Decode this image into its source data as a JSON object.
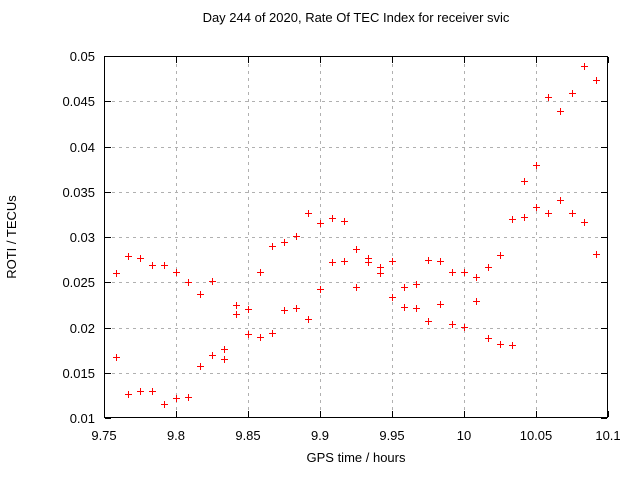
{
  "title": "Day 244 of 2020, Rate Of TEC Index for receiver svic",
  "axes": {
    "xlabel": "GPS time / hours",
    "ylabel": "ROTI / TECUs",
    "x_ticks": [
      "9.75",
      "9.8",
      "9.85",
      "9.9",
      "9.95",
      "10",
      "10.05",
      "10.1"
    ],
    "y_ticks": [
      "0.01",
      "0.015",
      "0.02",
      "0.025",
      "0.03",
      "0.035",
      "0.04",
      "0.045",
      "0.05"
    ]
  },
  "colors": {
    "marker": "#ff0000",
    "grid": "#b0b0b0",
    "axis": "#000000",
    "background": "#ffffff"
  },
  "chart_data": {
    "type": "scatter",
    "title": "Day 244 of 2020, Rate Of TEC Index for receiver svic",
    "xlabel": "GPS time / hours",
    "ylabel": "ROTI / TECUs",
    "xlim": [
      9.75,
      10.1
    ],
    "ylim": [
      0.01,
      0.05
    ],
    "grid": true,
    "legend": false,
    "marker": "plus",
    "marker_color": "#ff0000",
    "points": [
      [
        9.7583,
        0.026
      ],
      [
        9.7583,
        0.0167
      ],
      [
        9.7667,
        0.0279
      ],
      [
        9.7667,
        0.0127
      ],
      [
        9.775,
        0.0277
      ],
      [
        9.775,
        0.013
      ],
      [
        9.7833,
        0.0269
      ],
      [
        9.7833,
        0.013
      ],
      [
        9.7917,
        0.0269
      ],
      [
        9.7917,
        0.0115
      ],
      [
        9.8,
        0.0261
      ],
      [
        9.8,
        0.0122
      ],
      [
        9.8083,
        0.025
      ],
      [
        9.8083,
        0.0123
      ],
      [
        9.8167,
        0.0237
      ],
      [
        9.8167,
        0.0157
      ],
      [
        9.825,
        0.0251
      ],
      [
        9.825,
        0.017
      ],
      [
        9.8333,
        0.0176
      ],
      [
        9.8333,
        0.0165
      ],
      [
        9.8417,
        0.0225
      ],
      [
        9.8417,
        0.0215
      ],
      [
        9.85,
        0.022
      ],
      [
        9.85,
        0.0193
      ],
      [
        9.8583,
        0.0261
      ],
      [
        9.8583,
        0.019
      ],
      [
        9.8667,
        0.029
      ],
      [
        9.8667,
        0.0194
      ],
      [
        9.875,
        0.0294
      ],
      [
        9.875,
        0.0219
      ],
      [
        9.8833,
        0.0301
      ],
      [
        9.8833,
        0.0221
      ],
      [
        9.8917,
        0.0326
      ],
      [
        9.8917,
        0.0209
      ],
      [
        9.9,
        0.0315
      ],
      [
        9.9,
        0.0243
      ],
      [
        9.9083,
        0.0321
      ],
      [
        9.9083,
        0.0272
      ],
      [
        9.9167,
        0.0318
      ],
      [
        9.9167,
        0.0274
      ],
      [
        9.925,
        0.0287
      ],
      [
        9.925,
        0.0245
      ],
      [
        9.9333,
        0.0277
      ],
      [
        9.9333,
        0.0272
      ],
      [
        9.9417,
        0.0267
      ],
      [
        9.9417,
        0.026
      ],
      [
        9.95,
        0.0274
      ],
      [
        9.95,
        0.0234
      ],
      [
        9.9583,
        0.0245
      ],
      [
        9.9583,
        0.0223
      ],
      [
        9.9667,
        0.0248
      ],
      [
        9.9667,
        0.0222
      ],
      [
        9.975,
        0.0275
      ],
      [
        9.975,
        0.0207
      ],
      [
        9.9833,
        0.0273
      ],
      [
        9.9833,
        0.0226
      ],
      [
        9.9917,
        0.0261
      ],
      [
        9.9917,
        0.0204
      ],
      [
        10.0,
        0.0261
      ],
      [
        10.0,
        0.0201
      ],
      [
        10.0083,
        0.0256
      ],
      [
        10.0083,
        0.0229
      ],
      [
        10.0167,
        0.0267
      ],
      [
        10.0167,
        0.0188
      ],
      [
        10.025,
        0.028
      ],
      [
        10.025,
        0.0182
      ],
      [
        10.0333,
        0.032
      ],
      [
        10.0333,
        0.0181
      ],
      [
        10.0417,
        0.0362
      ],
      [
        10.0417,
        0.0322
      ],
      [
        10.05,
        0.038
      ],
      [
        10.05,
        0.0333
      ],
      [
        10.0583,
        0.0455
      ],
      [
        10.0583,
        0.0326
      ],
      [
        10.0667,
        0.0439
      ],
      [
        10.0667,
        0.0341
      ],
      [
        10.075,
        0.0459
      ],
      [
        10.075,
        0.0326
      ],
      [
        10.0833,
        0.0489
      ],
      [
        10.0833,
        0.0317
      ],
      [
        10.0917,
        0.0474
      ],
      [
        10.0917,
        0.0281
      ]
    ]
  }
}
